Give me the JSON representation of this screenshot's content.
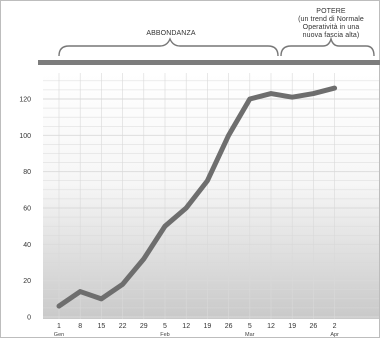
{
  "annotations": {
    "phase_left": "ABBONDANZA",
    "phase_right": "POTERE\n(un trend di Normale\nOperatività in una\nnuova fascia alta)"
  },
  "colors": {
    "line": "#6e6e6e",
    "band": "#7c7c7c",
    "grid": "#d9d9d9"
  },
  "chart_data": {
    "type": "line",
    "title": "",
    "xlabel": "",
    "ylabel": "",
    "ylim": [
      0,
      130
    ],
    "yticks": [
      0,
      20,
      40,
      60,
      80,
      100,
      120
    ],
    "grid": true,
    "categories": [
      "1",
      "8",
      "15",
      "22",
      "29",
      "5",
      "12",
      "19",
      "26",
      "5",
      "12",
      "19",
      "26",
      "2"
    ],
    "month_labels": [
      {
        "index": 0,
        "label": "Gen"
      },
      {
        "index": 5,
        "label": "Feb"
      },
      {
        "index": 9,
        "label": "Mar"
      },
      {
        "index": 13,
        "label": "Apr"
      }
    ],
    "series": [
      {
        "values": [
          6,
          14,
          10,
          18,
          32,
          50,
          60,
          75,
          100,
          120,
          123,
          121,
          123,
          126
        ]
      }
    ]
  }
}
